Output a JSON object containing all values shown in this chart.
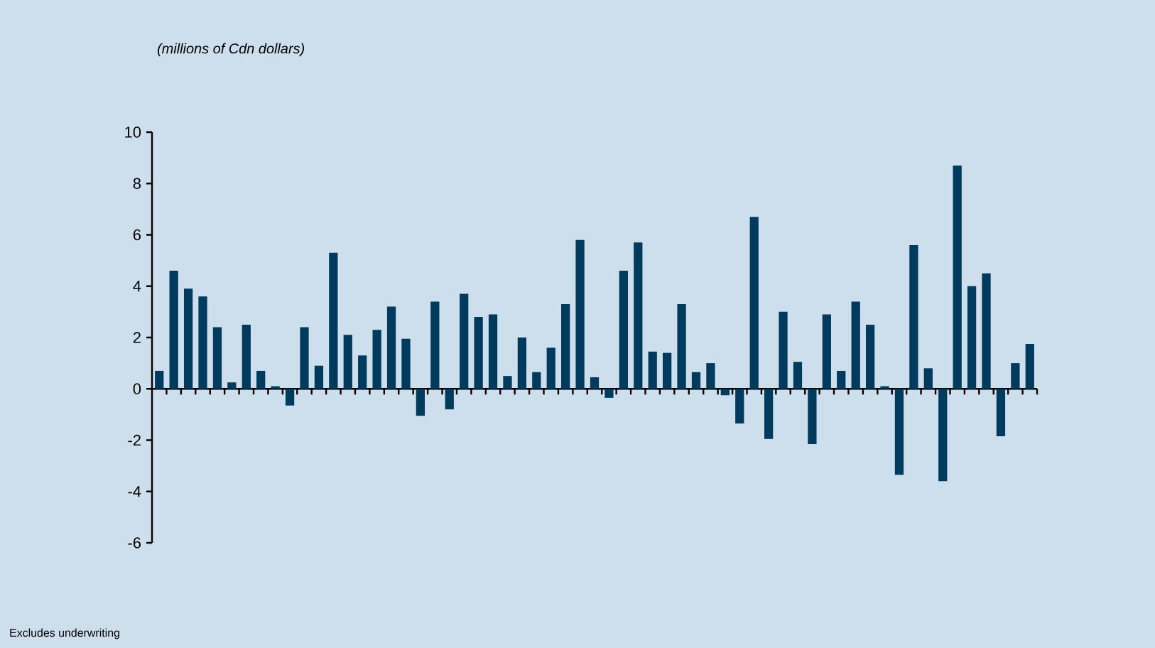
{
  "chart_data": {
    "type": "bar",
    "ylabel": "(millions of  Cdn dollars)",
    "annotations": [
      "Excludes underwriting"
    ],
    "categories": [
      null,
      null,
      null,
      null,
      null,
      null,
      null,
      null,
      null,
      null,
      null,
      null,
      null,
      null,
      null,
      null,
      null,
      null,
      null,
      null,
      null,
      null,
      null,
      null,
      null,
      null,
      null,
      null,
      null,
      null,
      null,
      null,
      null,
      null,
      null,
      null,
      null,
      null,
      null,
      null,
      null,
      null,
      null,
      null,
      null,
      null,
      null,
      null,
      null,
      null,
      null,
      null,
      null,
      null,
      null,
      null,
      null,
      null,
      null,
      null,
      null
    ],
    "values": [
      0.7,
      4.6,
      3.9,
      3.6,
      2.4,
      0.25,
      2.5,
      0.7,
      0.1,
      -0.65,
      2.4,
      0.9,
      5.3,
      2.1,
      1.3,
      2.3,
      3.2,
      1.95,
      -1.05,
      3.4,
      -0.8,
      3.7,
      2.8,
      2.9,
      0.5,
      2.0,
      0.65,
      1.6,
      3.3,
      5.8,
      0.45,
      -0.35,
      4.6,
      5.7,
      1.45,
      1.4,
      3.3,
      0.65,
      1.0,
      -0.25,
      -1.35,
      6.7,
      -1.95,
      3.0,
      1.05,
      -2.15,
      2.9,
      0.7,
      3.4,
      2.5,
      0.1,
      -3.35,
      5.6,
      0.8,
      -3.6,
      8.7,
      4.0,
      4.5,
      -1.85,
      1.0,
      1.75
    ],
    "color": "#003a5c",
    "ylim": [
      -6,
      10
    ],
    "yticks": [
      -6,
      -4,
      -2,
      0,
      2,
      4,
      6,
      8,
      10
    ]
  }
}
